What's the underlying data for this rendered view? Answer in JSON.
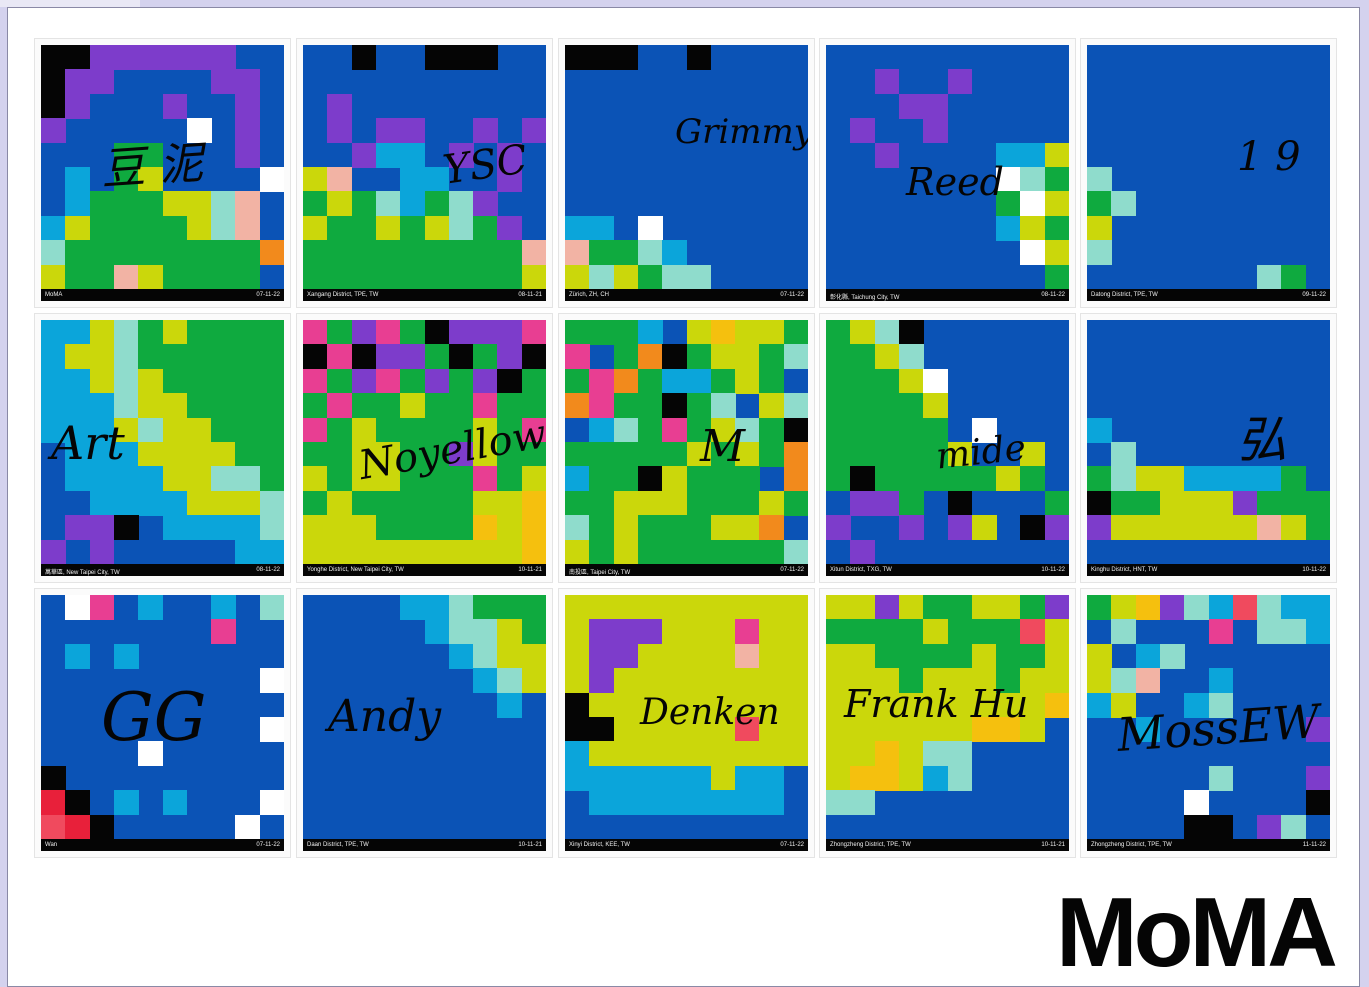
{
  "palette": {
    "B": "#0b53b6",
    "P": "#7d3ccb",
    "C": "#0ba5da",
    "G": "#0faa3f",
    "Y": "#cbd70b",
    "T": "#8fdccc",
    "W": "#ffffff",
    "K": "#050505",
    "O": "#f28a1c",
    "M": "#e83e92",
    "S": "#f2b3a4",
    "R": "#e8203a",
    "A": "#f5c00e",
    "N": "#f04a5e"
  },
  "brand": {
    "logo_text": "MoMA"
  },
  "cards": [
    {
      "signature": "豆 泥",
      "location": "MoMA",
      "date": "07-11-22",
      "pixels": [
        "KKPPPPPPBB",
        "KPPBBBBPPB",
        "KPBBBPBBPB",
        "PBBBBBWBPB",
        "BBBGGBBBPB",
        "BCBGYBBBBW",
        "BCGGGYYTSB",
        "CYGGGGYTSB",
        "TGGGGGGGGO",
        "YGGSYGGGGB"
      ]
    },
    {
      "signature": "YSC",
      "location": "Xangang District, TPE, TW",
      "date": "08-11-21",
      "pixels": [
        "BBKBBKKKBB",
        "BBBBBBBBBB",
        "BPBBBBBBBB",
        "BPBPPBBPBP",
        "BBPCCBPBPB",
        "YSBBCCBBPB",
        "GYGTCGTPBB",
        "YGGYGYTGPB",
        "GGGGGGGGGS",
        "GGGGGGGGGY"
      ]
    },
    {
      "signature": "Grimmy",
      "location": "Zürich, ZH, CH",
      "date": "07-11-22",
      "pixels": [
        "KKKBBKBBBB",
        "BBBBBBBBBB",
        "BBBBBBBBBB",
        "BBBBBBBBBB",
        "BBBBBBBBBB",
        "BBBBBBBBBB",
        "BBBBBBBBBB",
        "CCBWBBBBBB",
        "SGGTCBBBBB",
        "YTYGTTBBBB"
      ]
    },
    {
      "signature": "Reed",
      "location": "彰化縣, Taichung City, TW",
      "date": "08-11-22",
      "pixels": [
        "BBBBBBBBBB",
        "BBPBBPBBBB",
        "BBBPPBBBBB",
        "BPBBPBBBBB",
        "BBPBBBBCCY",
        "BBBBBBBWTG",
        "BBBBBBBGWY",
        "BBBBBBBCYG",
        "BBBBBBBBWY",
        "BBBBBBBBBG"
      ]
    },
    {
      "signature": "1 9",
      "location": "Datong District, TPE, TW",
      "date": "09-11-22",
      "pixels": [
        "BBBBBBBBBB",
        "BBBBBBBBBB",
        "BBBBBBBBBB",
        "BBBBBBBBBB",
        "BBBBBBBBBB",
        "TBBBBBBBBB",
        "GTBBBBBBBB",
        "YBBBBBBBBB",
        "TBBBBBBBBB",
        "BBBBBBBTGB"
      ]
    },
    {
      "signature": "Art",
      "location": "萬華區, New Taipei City, TW",
      "date": "08-11-22",
      "pixels": [
        "CCYTGYGGGG",
        "CYYTGGGGGG",
        "CCYTYGGGGG",
        "CCCTYYGGGG",
        "CCCYTYYGGG",
        "BCCCYYYYGG",
        "BCCCCYYTTG",
        "BBCCCCYYYT",
        "BPPKBCCCCT",
        "PBPBBBBBCC"
      ]
    },
    {
      "signature": "Noyellow",
      "location": "Yonghe District, New Taipei City, TW",
      "date": "10-11-21",
      "pixels": [
        "MGPMGKPPPM",
        "KMKPPGKGPK",
        "MGPMGPGPKG",
        "GMGGYGGMGG",
        "MGYGGGGYGM",
        "GGYYGGPYGG",
        "YGYYGGGMGY",
        "GYGGGGGYYA",
        "YYYGGGGAYA",
        "YYYYYYYYYA"
      ]
    },
    {
      "signature": "M",
      "location": "南投區, Taipei City, TW",
      "date": "07-11-22",
      "pixels": [
        "GGGCBYAYYG",
        "MBGOKGYYGT",
        "GMOGCCGYGB",
        "OMGGKGTBYT",
        "BCTGMGYTGK",
        "GGGGGYGYGO",
        "CGGKYGGGBO",
        "GGYYYGGGYG",
        "TGYGGGYYOB",
        "YGYGGGGGGT"
      ]
    },
    {
      "signature": "mide",
      "location": "Xitun District, TXG, TW",
      "date": "10-11-22",
      "pixels": [
        "GYTKBBBBBB",
        "GGYTBBBBBB",
        "GGGYWBBBBB",
        "GGGGYBBBBB",
        "GGGGGBWBBB",
        "GGGGGYBBYB",
        "GKGGGGGYGB",
        "BPPGBKBBBG",
        "PBBPBPYBKP",
        "BPBBBBBBBB"
      ]
    },
    {
      "signature": "弘",
      "location": "Kinghu District, HNT, TW",
      "date": "10-11-22",
      "pixels": [
        "BBBBBBBBBB",
        "BBBBBBBBBB",
        "BBBBBBBBBB",
        "BBBBBBBBBB",
        "CBBBBBBBBB",
        "BTBBBBBBBB",
        "GTYYCCCCGB",
        "KGGYYYPGGG",
        "PYYYYYYSYG",
        "BBBBBBBBBB"
      ]
    },
    {
      "signature": "GG",
      "location": "Wan",
      "date": "07-11-22",
      "pixels": [
        "BWMBCBBCBT",
        "BBBBBBBMBB",
        "BCBCBBBBBB",
        "BBBBBBBBBW",
        "BBBBBBBBBB",
        "BBBBBBBBBW",
        "BBBBWBBBBB",
        "KBBBBBBBBB",
        "RKBCBCBBBW",
        "NRKBBBBBWB"
      ]
    },
    {
      "signature": "Andy",
      "location": "Daan District, TPE, TW",
      "date": "10-11-21",
      "pixels": [
        "BBBBCCTGGG",
        "BBBBBCTTYG",
        "BBBBBBCTYY",
        "BBBBBBBCTY",
        "BBBBBBBBCB",
        "BBBBBBBBBB",
        "BBBBBBBBBB",
        "BBBBBBBBBB",
        "BBBBBBBBBB",
        "BBBBBBBBBB"
      ]
    },
    {
      "signature": "Denken",
      "location": "Xinyi District, KEE, TW",
      "date": "07-11-22",
      "pixels": [
        "YYYYYYYYYY",
        "YPPPYYYMYY",
        "YPPYYYYSYY",
        "YPYYYYYYYY",
        "KYYYYYYYYY",
        "KKYYYYYNYY",
        "CYYYYYYYYY",
        "CCCCCCYCCB",
        "BCCCCCCCCB",
        "BBBBBBBBBB"
      ]
    },
    {
      "signature": "Frank Hu",
      "location": "Zhongzheng District, TPE, TW",
      "date": "10-11-21",
      "pixels": [
        "YYPYGGYYGP",
        "GGGGYGGGNY",
        "YYGGGGYGGY",
        "YYYGYYYGYY",
        "YYYYYYYYYA",
        "YYYYYYAAYB",
        "YYAYTTBBBB",
        "YAAYCTBBBB",
        "TTBBBBBBBB",
        "BBBBBBBBBB"
      ]
    },
    {
      "signature": "MossEW",
      "location": "Zhongzheng District, TPE, TW",
      "date": "11-11-22",
      "pixels": [
        "GYAPTCNTCC",
        "BTBBBMBTTC",
        "YBCTBBBBBB",
        "YTSBBCBBBB",
        "CYBBCTBBBB",
        "BBCBBBBBBP",
        "BBBBBBBBBB",
        "BBBBBTBBBP",
        "BBBBWBBBBK",
        "BBBBKKBPTB"
      ]
    }
  ]
}
